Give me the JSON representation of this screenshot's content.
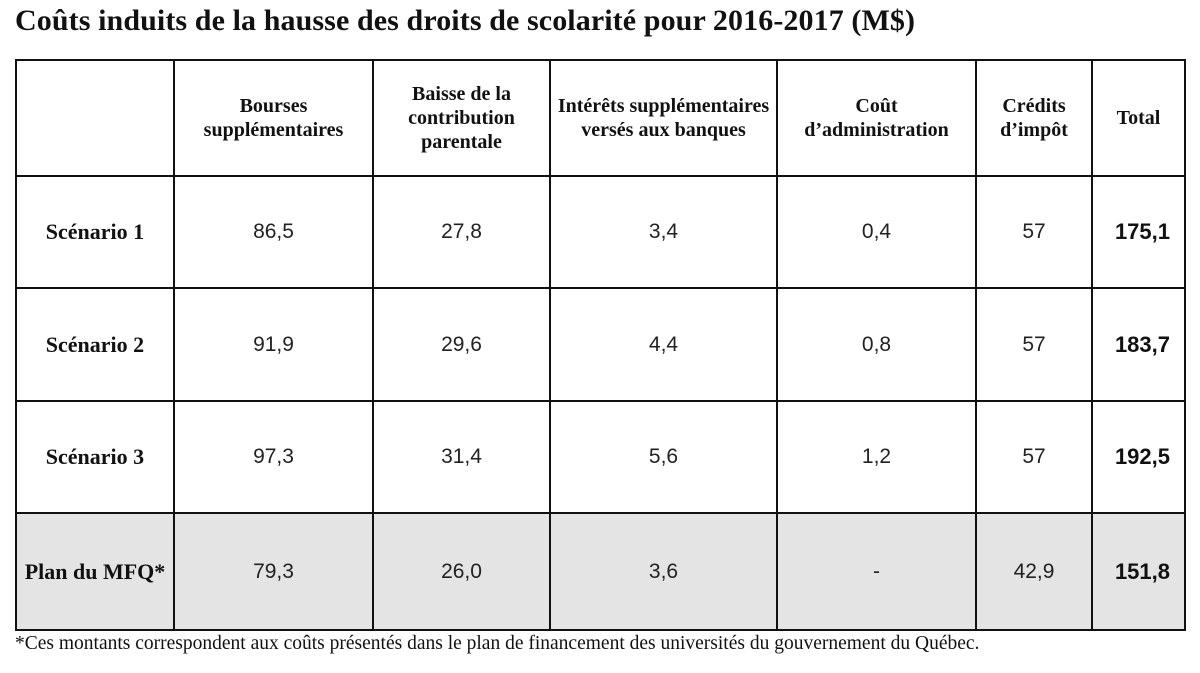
{
  "title": "Coûts induits de la hausse des droits de scolarité pour 2016-2017 (M$)",
  "chart_data": {
    "type": "table",
    "title": "Coûts induits de la hausse des droits de scolarité pour 2016-2017 (M$)",
    "columns": [
      "",
      "Bourses supplémentaires",
      "Baisse de la contribution parentale",
      "Intérêts supplémentaires versés aux banques",
      "Coût d’administration",
      "Crédits d’impôt",
      "Total"
    ],
    "rows": [
      {
        "label": "Scénario 1",
        "values": [
          "86,5",
          "27,8",
          "3,4",
          "0,4",
          "57"
        ],
        "total": "175,1"
      },
      {
        "label": "Scénario 2",
        "values": [
          "91,9",
          "29,6",
          "4,4",
          "0,8",
          "57"
        ],
        "total": "183,7"
      },
      {
        "label": "Scénario 3",
        "values": [
          "97,3",
          "31,4",
          "5,6",
          "1,2",
          "57"
        ],
        "total": "192,5"
      },
      {
        "label": "Plan du MFQ*",
        "values": [
          "79,3",
          "26,0",
          "3,6",
          "-",
          "42,9"
        ],
        "total": "151,8"
      }
    ],
    "footnote": "*Ces montants correspondent aux coûts présentés dans le plan de financement des universités du gouvernement du Québec."
  },
  "colors": {
    "shaded_row": "#e4e4e4",
    "border": "#111111"
  }
}
